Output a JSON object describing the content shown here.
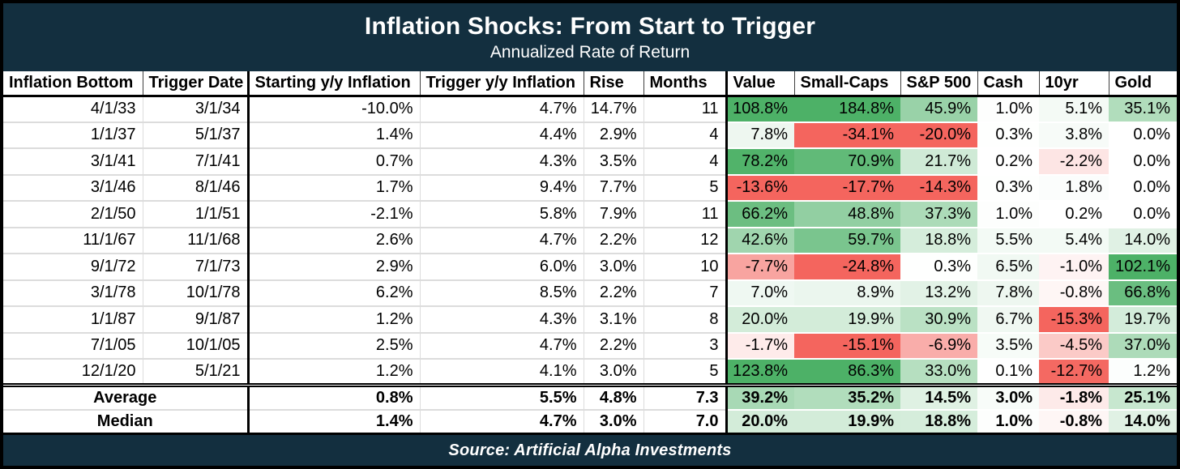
{
  "colors": {
    "header_bg": "#132f3f",
    "text_on_header": "#ffffff",
    "grid_line": "#dcdcdc",
    "group_border": "#000000"
  },
  "chart_data": {
    "type": "table",
    "title": "Inflation Shocks: From Start to Trigger",
    "subtitle": "Annualized Rate of Return",
    "source": "Source: Artificial Alpha Investments",
    "columns": [
      "Inflation Bottom",
      "Trigger Date",
      "Starting y/y Inflation",
      "Trigger y/y Inflation",
      "Rise",
      "Months",
      "Value",
      "Small-Caps",
      "S&P 500",
      "Cash",
      "10yr",
      "Gold"
    ],
    "rows": [
      [
        "4/1/33",
        "3/1/34",
        "-10.0%",
        "4.7%",
        "14.7%",
        "11",
        "108.8%",
        "184.8%",
        "45.9%",
        "1.0%",
        "5.1%",
        "35.1%"
      ],
      [
        "1/1/37",
        "5/1/37",
        "1.4%",
        "4.4%",
        "2.9%",
        "4",
        "7.8%",
        "-34.1%",
        "-20.0%",
        "0.3%",
        "3.8%",
        "0.0%"
      ],
      [
        "3/1/41",
        "7/1/41",
        "0.7%",
        "4.3%",
        "3.5%",
        "4",
        "78.2%",
        "70.9%",
        "21.7%",
        "0.2%",
        "-2.2%",
        "0.0%"
      ],
      [
        "3/1/46",
        "8/1/46",
        "1.7%",
        "9.4%",
        "7.7%",
        "5",
        "-13.6%",
        "-17.7%",
        "-14.3%",
        "0.3%",
        "1.8%",
        "0.0%"
      ],
      [
        "2/1/50",
        "1/1/51",
        "-2.1%",
        "5.8%",
        "7.9%",
        "11",
        "66.2%",
        "48.8%",
        "37.3%",
        "1.0%",
        "0.2%",
        "0.0%"
      ],
      [
        "11/1/67",
        "11/1/68",
        "2.6%",
        "4.7%",
        "2.2%",
        "12",
        "42.6%",
        "59.7%",
        "18.8%",
        "5.5%",
        "5.4%",
        "14.0%"
      ],
      [
        "9/1/72",
        "7/1/73",
        "2.9%",
        "6.0%",
        "3.0%",
        "10",
        "-7.7%",
        "-24.8%",
        "0.3%",
        "6.5%",
        "-1.0%",
        "102.1%"
      ],
      [
        "3/1/78",
        "10/1/78",
        "6.2%",
        "8.5%",
        "2.2%",
        "7",
        "7.0%",
        "8.9%",
        "13.2%",
        "7.8%",
        "-0.8%",
        "66.8%"
      ],
      [
        "1/1/87",
        "9/1/87",
        "1.2%",
        "4.3%",
        "3.1%",
        "8",
        "20.0%",
        "19.9%",
        "30.9%",
        "6.7%",
        "-15.3%",
        "19.7%"
      ],
      [
        "7/1/05",
        "10/1/05",
        "2.5%",
        "4.7%",
        "2.2%",
        "3",
        "-1.7%",
        "-15.1%",
        "-6.9%",
        "3.5%",
        "-4.5%",
        "37.0%"
      ],
      [
        "12/1/20",
        "5/1/21",
        "1.2%",
        "4.1%",
        "3.0%",
        "5",
        "123.8%",
        "86.3%",
        "33.0%",
        "0.1%",
        "-12.7%",
        "1.2%"
      ]
    ],
    "summary": [
      [
        "Average",
        "0.8%",
        "5.5%",
        "4.8%",
        "7.3",
        "39.2%",
        "35.2%",
        "14.5%",
        "3.0%",
        "-1.8%",
        "25.1%"
      ],
      [
        "Median",
        "1.4%",
        "4.7%",
        "3.0%",
        "7.0",
        "20.0%",
        "19.9%",
        "18.8%",
        "1.0%",
        "-0.8%",
        "14.0%"
      ]
    ],
    "color_scale": {
      "negative": "#f4655e",
      "neutral": "#ffffff",
      "positive": "#4db167",
      "negative_saturates_at": -13,
      "positive_saturates_at": 80
    },
    "layout_hints": {
      "asset_columns_start_index": 6,
      "thick_group_borders_after_columns": [
        "Trigger Date",
        "Months"
      ]
    }
  }
}
